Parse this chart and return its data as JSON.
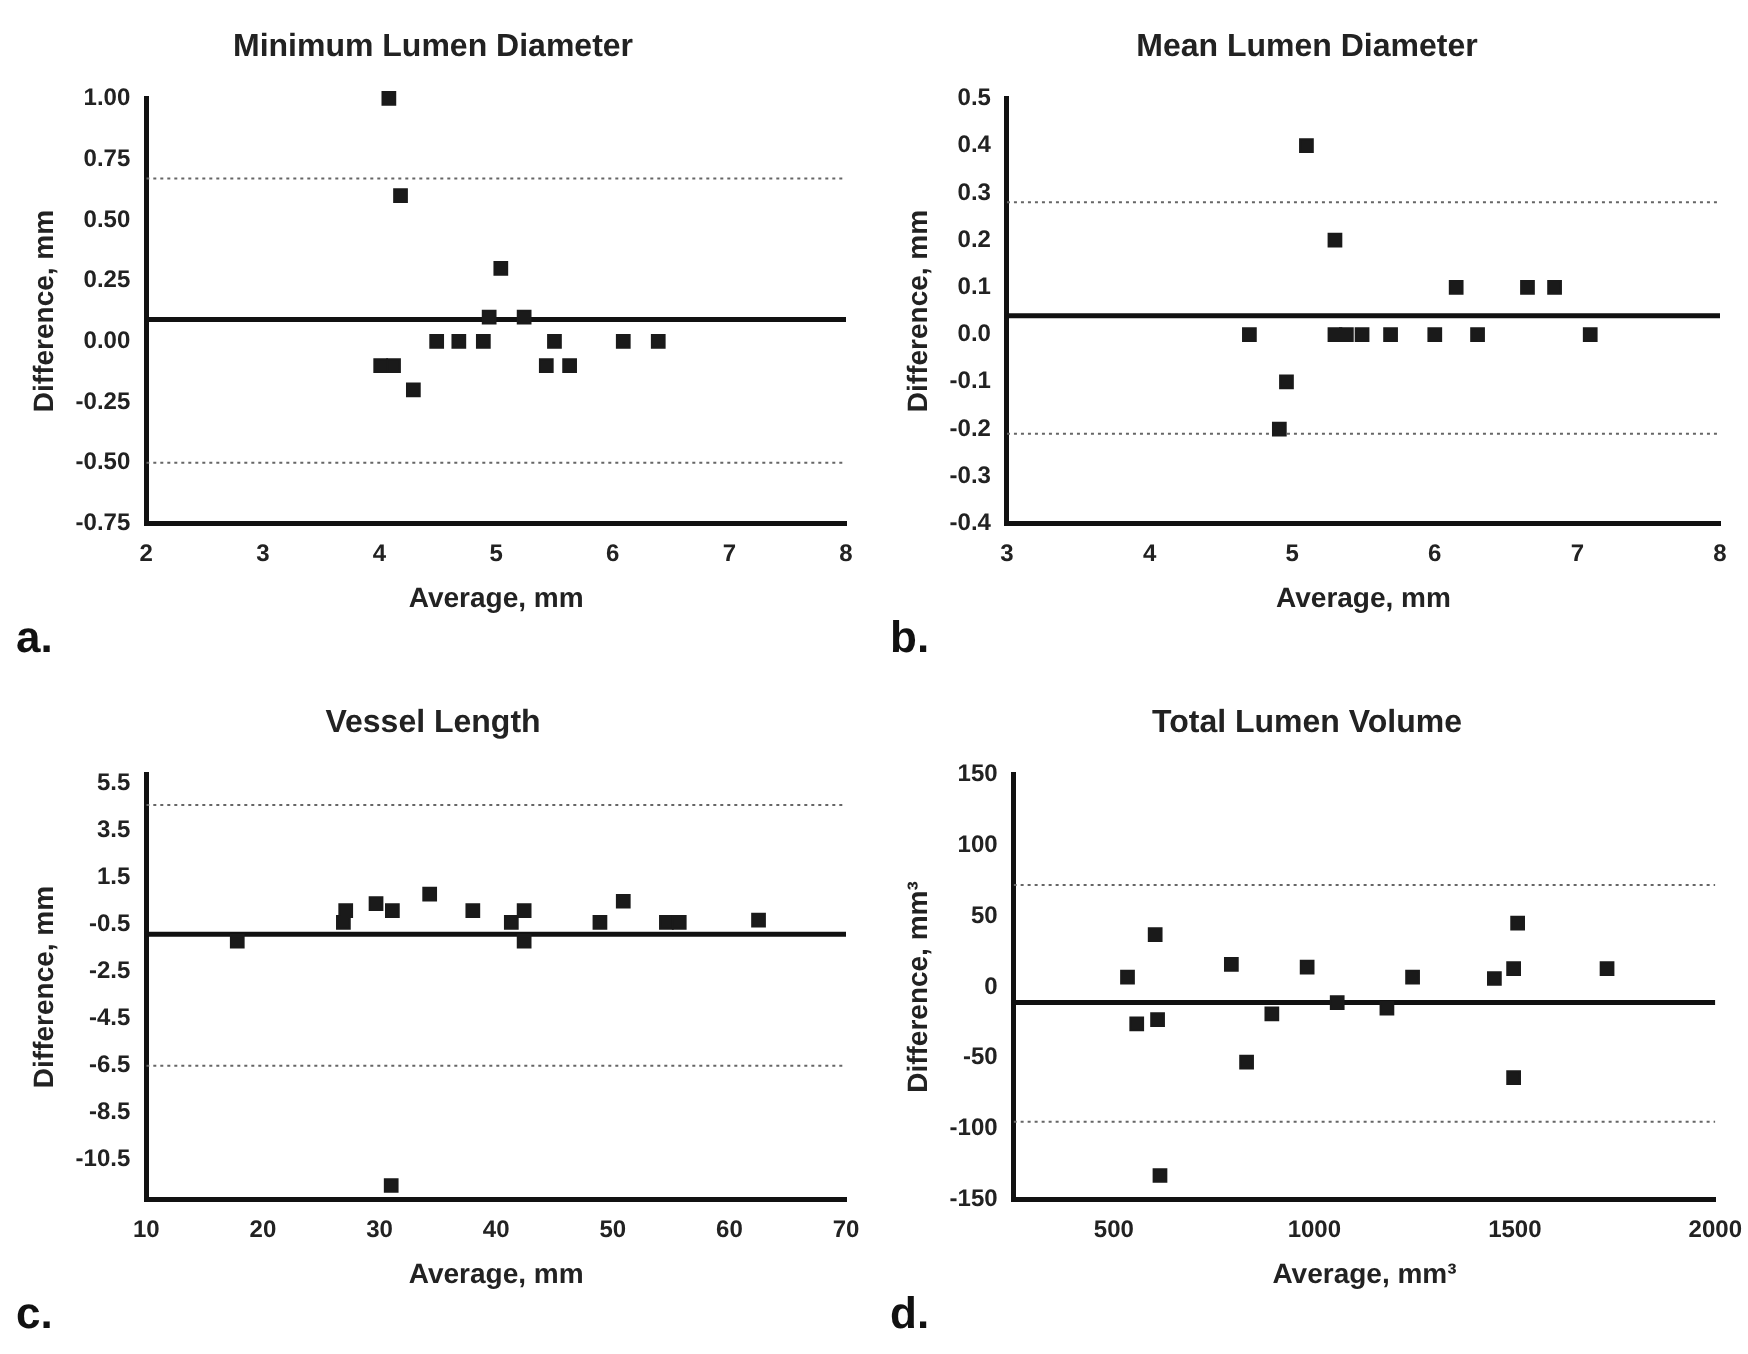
{
  "chart_data": [
    {
      "type": "scatter",
      "title": "Minimum Lumen Diameter",
      "xlabel": "Average, mm",
      "ylabel": "Difference, mm",
      "annotations": [
        "a."
      ],
      "marker": "square",
      "grid": false,
      "legend": false,
      "series": [
        {
          "color": "#1a1a1a",
          "x": [
            4.08,
            4.18,
            4.01,
            4.12,
            4.29,
            4.49,
            4.68,
            4.89,
            4.94,
            5.04,
            5.24,
            5.5,
            5.43,
            5.63,
            6.09,
            6.39
          ],
          "values": [
            1.0,
            0.6,
            -0.1,
            -0.1,
            -0.2,
            0,
            0,
            0,
            0.1,
            0.3,
            0.1,
            0,
            -0.1,
            -0.1,
            0,
            0
          ]
        }
      ],
      "xlim": [
        2,
        8
      ],
      "xticks": [
        2,
        3,
        4,
        5,
        6,
        7,
        8
      ],
      "ylim": [
        -0.75,
        1.0
      ],
      "yticks": [
        {
          "value": 1.0,
          "label": "1.00"
        },
        {
          "value": 0.75,
          "label": "0.75"
        },
        {
          "value": 0.5,
          "label": "0.50"
        },
        {
          "value": 0.25,
          "label": "0.25"
        },
        {
          "value": 0,
          "label": "0.00"
        },
        {
          "value": -0.25,
          "label": "-0.25"
        },
        {
          "value": -0.5,
          "label": "-0.50"
        },
        {
          "value": -0.75,
          "label": "-0.75"
        }
      ],
      "ref_lines": [
        {
          "axis": "y",
          "value": 0.09,
          "line_style": "solid"
        },
        {
          "axis": "y",
          "value": 0.67,
          "line_style": "dotted"
        },
        {
          "axis": "y",
          "value": -0.5,
          "line_style": "dotted"
        }
      ]
    },
    {
      "type": "scatter",
      "title": "Mean Lumen Diameter",
      "xlabel": "Average, mm",
      "ylabel": "Difference, mm",
      "annotations": [
        "b."
      ],
      "marker": "square",
      "grid": false,
      "legend": false,
      "series": [
        {
          "color": "#1a1a1a",
          "x": [
            5.1,
            5.3,
            4.7,
            4.96,
            4.91,
            5.3,
            5.38,
            5.49,
            5.69,
            6.0,
            6.3,
            6.15,
            6.65,
            6.84,
            7.09
          ],
          "values": [
            0.4,
            0.2,
            0,
            -0.1,
            -0.2,
            0,
            0,
            0,
            0,
            0,
            0,
            0.1,
            0.1,
            0.1,
            0
          ]
        }
      ],
      "xlim": [
        3,
        8
      ],
      "xticks": [
        3,
        4,
        5,
        6,
        7,
        8
      ],
      "ylim": [
        -0.4,
        0.5
      ],
      "yticks": [
        0.5,
        0.4,
        0.3,
        0.2,
        0.1,
        {
          "value": 0,
          "label": "0.0"
        },
        -0.1,
        -0.2,
        -0.3,
        -0.4
      ],
      "ref_lines": [
        {
          "axis": "y",
          "value": 0.04,
          "line_style": "solid"
        },
        {
          "axis": "y",
          "value": 0.28,
          "line_style": "dotted"
        },
        {
          "axis": "y",
          "value": -0.21,
          "line_style": "dotted"
        }
      ]
    },
    {
      "type": "scatter",
      "title": "Vessel Length",
      "xlabel": "Average, mm",
      "ylabel": "Difference, mm",
      "annotations": [
        "c."
      ],
      "marker": "square",
      "grid": false,
      "legend": false,
      "series": [
        {
          "color": "#1a1a1a",
          "x": [
            17.8,
            26.9,
            27.1,
            29.7,
            31.1,
            34.3,
            38.0,
            41.3,
            42.4,
            42.4,
            48.9,
            50.9,
            54.6,
            55.7,
            62.5,
            31.0
          ],
          "values": [
            -1.2,
            -0.4,
            0.1,
            0.4,
            0.1,
            0.8,
            0.1,
            -0.4,
            0.1,
            -1.2,
            -0.4,
            0.5,
            -0.4,
            -0.4,
            -0.3,
            -11.6
          ]
        }
      ],
      "xlim": [
        10,
        70
      ],
      "xticks": [
        10,
        20,
        30,
        40,
        50,
        60,
        70
      ],
      "ylim": [
        -12.2,
        5.9
      ],
      "yticks": [
        5.5,
        3.5,
        1.5,
        -0.5,
        -2.5,
        -4.5,
        -6.5,
        -8.5,
        -10.5
      ],
      "ref_lines": [
        {
          "axis": "y",
          "value": -0.9,
          "line_style": "solid"
        },
        {
          "axis": "y",
          "value": 4.6,
          "line_style": "dotted"
        },
        {
          "axis": "y",
          "value": -6.5,
          "line_style": "dotted"
        }
      ]
    },
    {
      "type": "scatter",
      "title": "Total Lumen Volume",
      "xlabel": "Average, mm³",
      "ylabel": "Difference, mm³",
      "annotations": [
        "d."
      ],
      "marker": "square",
      "grid": false,
      "legend": false,
      "series": [
        {
          "color": "#1a1a1a",
          "x": [
            534,
            557,
            603,
            609,
            615,
            793,
            831,
            894,
            982,
            1057,
            1181,
            1245,
            1449,
            1497,
            1507,
            1497,
            1730
          ],
          "values": [
            7,
            -26,
            37,
            -23,
            -133,
            16,
            -53,
            -19,
            14,
            -11,
            -15,
            7,
            6,
            13,
            45,
            -64,
            13
          ]
        }
      ],
      "xlim": [
        250,
        2000
      ],
      "xticks": [
        500,
        1000,
        1500,
        2000
      ],
      "ylim": [
        -150,
        150
      ],
      "yticks": [
        150,
        100,
        50,
        0,
        -50,
        -100,
        -150
      ],
      "ref_lines": [
        {
          "axis": "y",
          "value": -11,
          "line_style": "solid"
        },
        {
          "axis": "y",
          "value": 72,
          "line_style": "dotted"
        },
        {
          "axis": "y",
          "value": -95,
          "line_style": "dotted"
        }
      ]
    }
  ]
}
